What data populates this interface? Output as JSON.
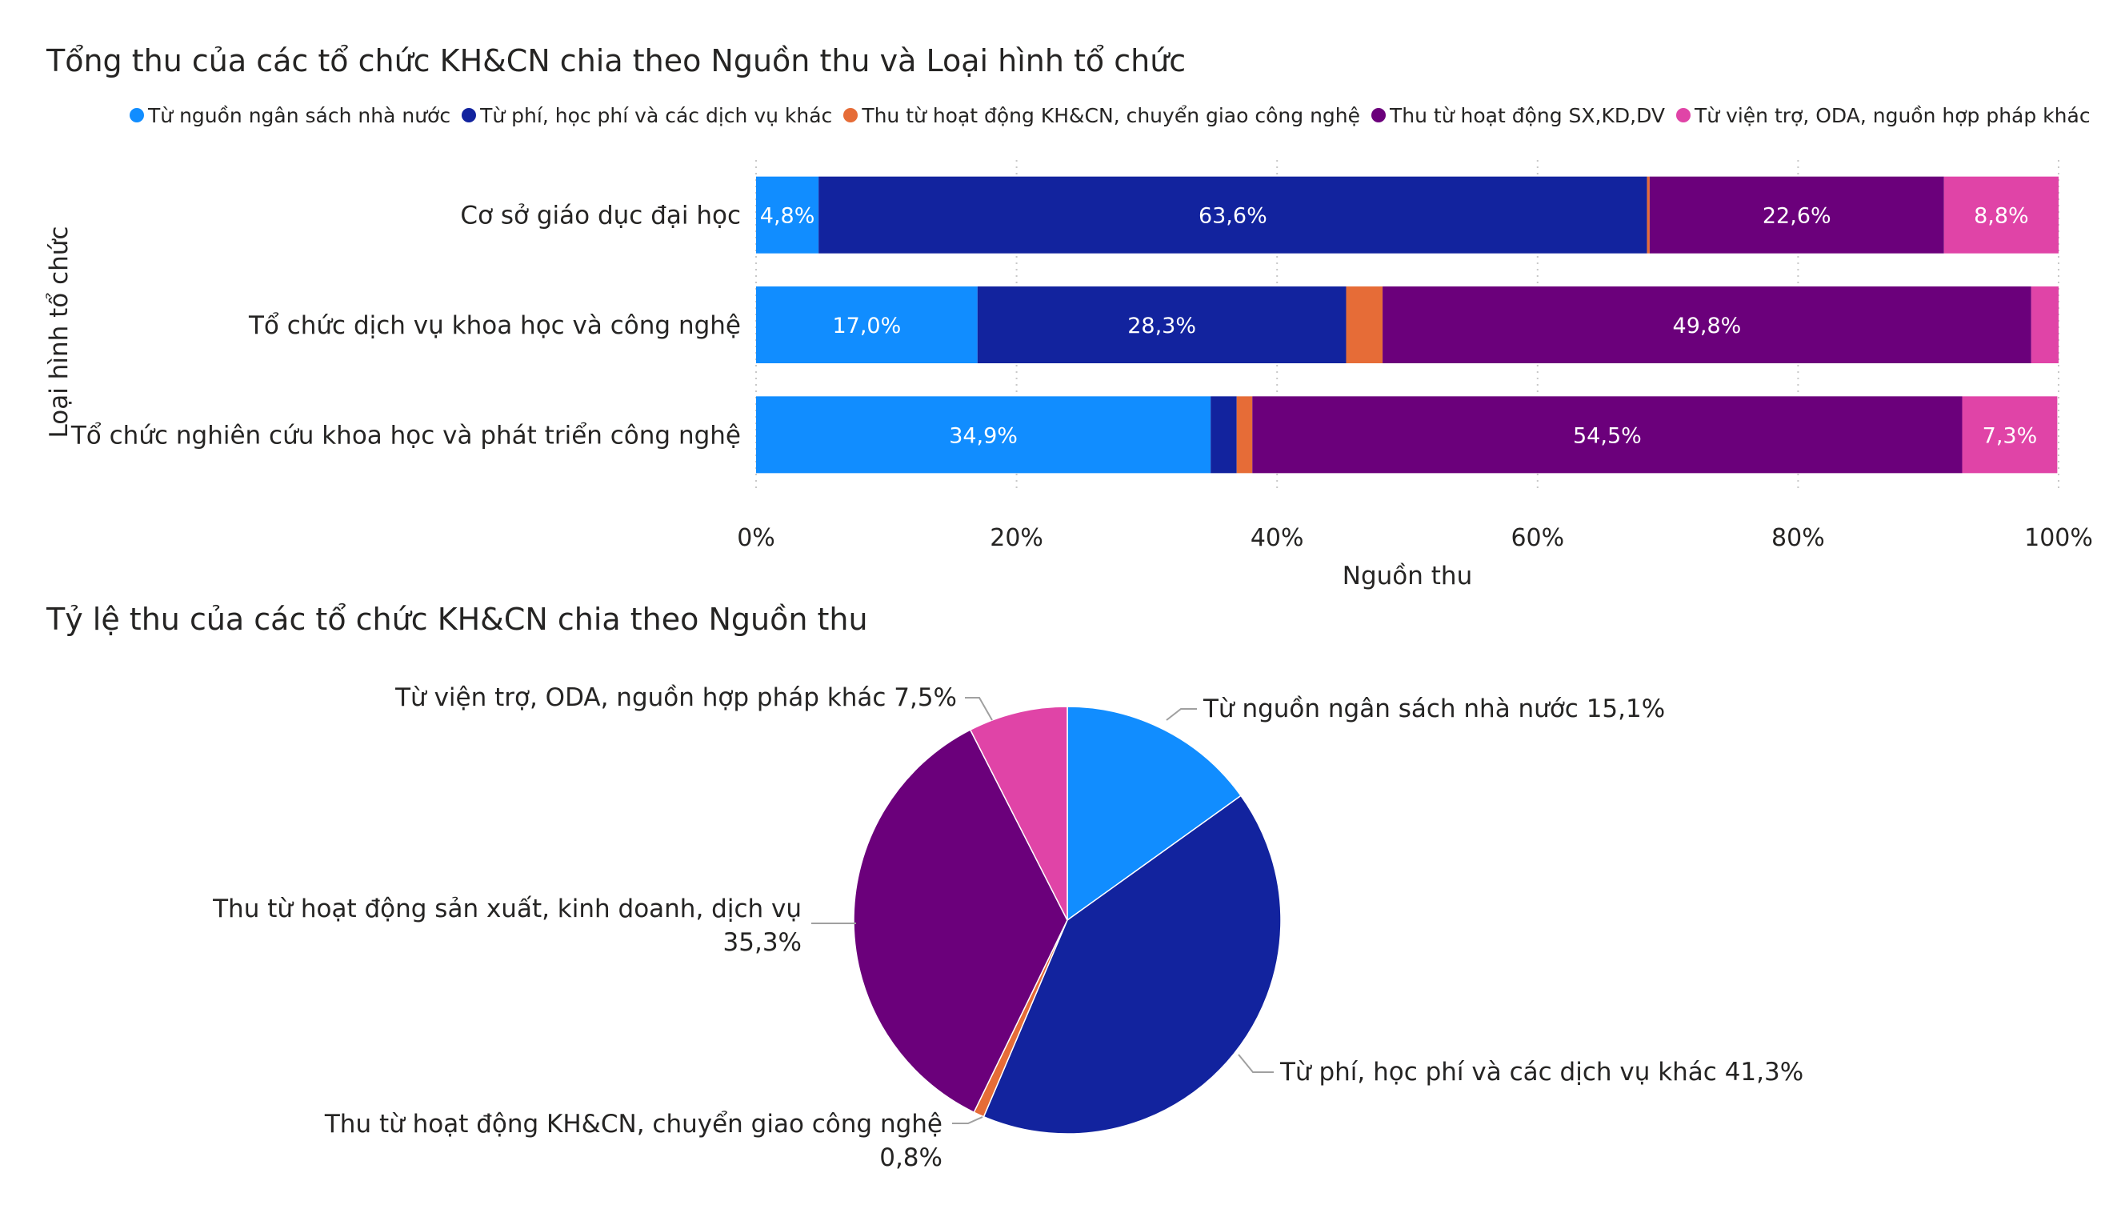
{
  "chart_data": [
    {
      "type": "bar",
      "orientation": "horizontal",
      "stacked": "100%",
      "title": "Tổng thu của các tổ chức KH&CN chia theo Nguồn thu và Loại hình tổ chức",
      "xlabel": "Nguồn thu",
      "ylabel": "Loại hình tổ chức",
      "xlim": [
        0,
        100
      ],
      "x_ticks": [
        "0%",
        "20%",
        "40%",
        "60%",
        "80%",
        "100%"
      ],
      "grid": "vertical dotted",
      "legend_position": "top-left",
      "categories": [
        "Cơ sở giáo dục đại học",
        "Tổ chức dịch vụ khoa học và công nghệ",
        "Tổ chức nghiên cứu khoa học và phát triển công nghệ"
      ],
      "series": [
        {
          "name": "Từ nguồn ngân sách nhà nước",
          "color": "#118DFF",
          "values": [
            4.8,
            17.0,
            34.9
          ],
          "labels": [
            "4,8%",
            "17,0%",
            "34,9%"
          ]
        },
        {
          "name": "Từ phí, học phí và các dịch vụ khác",
          "color": "#12239E",
          "values": [
            63.6,
            28.3,
            2.0
          ],
          "labels": [
            "63,6%",
            "28,3%",
            ""
          ]
        },
        {
          "name": "Thu từ hoạt động KH&CN, chuyển giao công nghệ",
          "color": "#E66C37",
          "values": [
            0.2,
            2.8,
            1.2
          ],
          "labels": [
            "",
            "",
            ""
          ]
        },
        {
          "name": "Thu từ hoạt động SX,KD,DV",
          "color": "#6B007B",
          "values": [
            22.6,
            49.8,
            54.5
          ],
          "labels": [
            "22,6%",
            "49,8%",
            "54,5%"
          ]
        },
        {
          "name": "Từ viện trợ, ODA, nguồn hợp pháp khác",
          "color": "#E044A7",
          "values": [
            8.8,
            2.1,
            7.3
          ],
          "labels": [
            "8,8%",
            "",
            "7,3%"
          ]
        }
      ]
    },
    {
      "type": "pie",
      "title": "Tỷ lệ thu của các tổ chức KH&CN chia theo Nguồn thu",
      "slices": [
        {
          "name": "Từ nguồn ngân sách nhà nước",
          "value": 15.1,
          "color": "#118DFF",
          "label_lines": [
            "Từ nguồn ngân sách nhà nước 15,1%"
          ]
        },
        {
          "name": "Từ phí, học phí và các dịch vụ khác",
          "value": 41.3,
          "color": "#12239E",
          "label_lines": [
            "Từ phí, học phí và các dịch vụ khác 41,3%"
          ]
        },
        {
          "name": "Thu từ hoạt động KH&CN, chuyển giao công nghệ",
          "value": 0.8,
          "color": "#E66C37",
          "label_lines": [
            "Thu từ hoạt động KH&CN, chuyển giao công nghệ",
            "0,8%"
          ]
        },
        {
          "name": "Thu từ hoạt động sản xuất, kinh doanh, dịch vụ",
          "value": 35.3,
          "color": "#6B007B",
          "label_lines": [
            "Thu từ hoạt động sản xuất, kinh doanh, dịch vụ",
            "35,3%"
          ]
        },
        {
          "name": "Từ viện trợ, ODA, nguồn hợp pháp khác",
          "value": 7.5,
          "color": "#E044A7",
          "label_lines": [
            "Từ viện trợ, ODA, nguồn hợp pháp khác 7,5%"
          ]
        }
      ]
    }
  ]
}
